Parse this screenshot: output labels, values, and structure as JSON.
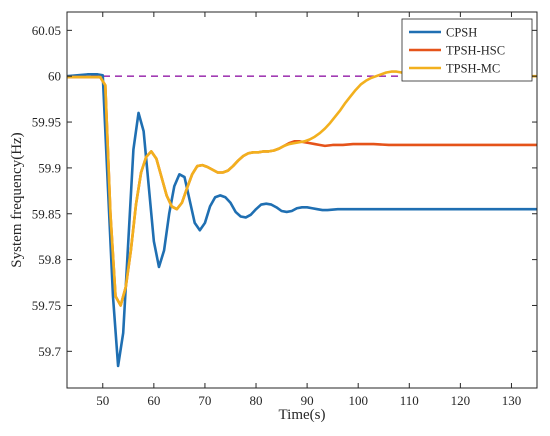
{
  "chart_data": {
    "type": "line",
    "title": "",
    "xlabel": "Time(s)",
    "ylabel": "System frequency(Hz)",
    "xlim": [
      43,
      135
    ],
    "ylim": [
      59.66,
      60.07
    ],
    "xticks": [
      "50",
      "60",
      "70",
      "80",
      "90",
      "100",
      "110",
      "120",
      "130"
    ],
    "yticks": [
      "59.7",
      "59.75",
      "59.8",
      "59.85",
      "59.9",
      "59.95",
      "60",
      "60.05"
    ],
    "grid": false,
    "legend_position": "top-right",
    "reference_line": {
      "y": 60,
      "style": "dashed",
      "color": "#a23cb4"
    },
    "series": [
      {
        "name": "CPSH",
        "color": "#1f6fb2",
        "x": [
          43,
          45,
          47,
          49,
          50,
          51,
          52,
          53,
          54,
          55,
          56,
          57,
          58,
          59,
          60,
          61,
          62,
          63,
          64,
          65,
          66,
          67,
          68,
          69,
          70,
          71,
          72,
          73,
          74,
          75,
          76,
          77,
          78,
          79,
          80,
          81,
          82,
          83,
          84,
          85,
          86,
          87,
          88,
          89,
          90,
          91,
          92,
          93,
          94,
          96,
          98,
          100,
          105,
          110,
          120,
          135
        ],
        "y": [
          60.0,
          60.001,
          60.002,
          60.002,
          60.001,
          59.88,
          59.76,
          59.684,
          59.72,
          59.82,
          59.92,
          59.96,
          59.94,
          59.88,
          59.82,
          59.792,
          59.81,
          59.85,
          59.88,
          59.893,
          59.89,
          59.865,
          59.84,
          59.832,
          59.84,
          59.858,
          59.868,
          59.87,
          59.868,
          59.862,
          59.852,
          59.847,
          59.846,
          59.849,
          59.855,
          59.86,
          59.861,
          59.86,
          59.857,
          59.853,
          59.852,
          59.853,
          59.856,
          59.857,
          59.857,
          59.856,
          59.855,
          59.854,
          59.854,
          59.855,
          59.855,
          59.855,
          59.855,
          59.855,
          59.855,
          59.855
        ]
      },
      {
        "name": "TPSH-HSC",
        "color": "#e5531a",
        "x": [
          43,
          47,
          49.5,
          50.5,
          51.5,
          52.5,
          53.5,
          54.5,
          55.5,
          56.5,
          57.5,
          58.5,
          59.5,
          60.5,
          61.5,
          62.5,
          63.5,
          64.5,
          65.5,
          66.5,
          67.5,
          68.5,
          69.5,
          70.5,
          71.5,
          72.5,
          73.5,
          74.5,
          75.5,
          76.5,
          77.5,
          78.5,
          79.5,
          80.5,
          81.5,
          82.5,
          83.5,
          84.5,
          85.5,
          86.5,
          87.5,
          88.5,
          89.5,
          90.5,
          91.5,
          92.5,
          93.5,
          95,
          97,
          99,
          101,
          103,
          106,
          110,
          120,
          135
        ],
        "y": [
          59.999,
          59.999,
          59.999,
          59.99,
          59.85,
          59.76,
          59.75,
          59.77,
          59.81,
          59.86,
          59.895,
          59.912,
          59.918,
          59.91,
          59.89,
          59.87,
          59.858,
          59.855,
          59.862,
          59.878,
          59.893,
          59.902,
          59.903,
          59.901,
          59.898,
          59.895,
          59.895,
          59.897,
          59.902,
          59.908,
          59.913,
          59.916,
          59.917,
          59.917,
          59.918,
          59.918,
          59.919,
          59.921,
          59.924,
          59.927,
          59.929,
          59.929,
          59.928,
          59.927,
          59.926,
          59.925,
          59.924,
          59.925,
          59.925,
          59.926,
          59.926,
          59.926,
          59.925,
          59.925,
          59.925,
          59.925
        ]
      },
      {
        "name": "TPSH-MC",
        "color": "#f2b01e",
        "x": [
          43,
          47,
          49.5,
          50.5,
          51.5,
          52.5,
          53.5,
          54.5,
          55.5,
          56.5,
          57.5,
          58.5,
          59.5,
          60.5,
          61.5,
          62.5,
          63.5,
          64.5,
          65.5,
          66.5,
          67.5,
          68.5,
          69.5,
          70.5,
          71.5,
          72.5,
          73.5,
          74.5,
          75.5,
          76.5,
          77.5,
          78.5,
          79.5,
          80.5,
          81.5,
          82.5,
          83.5,
          84.5,
          85.5,
          86.5,
          87.5,
          88.5,
          89.5,
          90.5,
          91.5,
          92.5,
          93.5,
          94.5,
          95.5,
          96.5,
          97.5,
          98.5,
          99.5,
          100.5,
          101.5,
          102.5,
          103.5,
          104.5,
          105.5,
          106.5,
          107.5,
          108.5,
          109.5,
          110.5,
          111.5,
          113,
          116,
          120,
          125,
          130,
          135
        ],
        "y": [
          59.999,
          59.999,
          59.999,
          59.99,
          59.85,
          59.76,
          59.75,
          59.77,
          59.81,
          59.86,
          59.895,
          59.912,
          59.918,
          59.91,
          59.89,
          59.87,
          59.858,
          59.855,
          59.862,
          59.878,
          59.893,
          59.902,
          59.903,
          59.901,
          59.898,
          59.895,
          59.895,
          59.897,
          59.902,
          59.908,
          59.913,
          59.916,
          59.917,
          59.917,
          59.918,
          59.918,
          59.919,
          59.921,
          59.924,
          59.926,
          59.927,
          59.928,
          59.929,
          59.931,
          59.934,
          59.938,
          59.943,
          59.949,
          59.956,
          59.963,
          59.971,
          59.978,
          59.985,
          59.991,
          59.995,
          59.998,
          60.0,
          60.002,
          60.004,
          60.005,
          60.005,
          60.004,
          60.002,
          60.0,
          59.999,
          59.999,
          60.0,
          60.0,
          60.0,
          60.0,
          60.0
        ]
      }
    ]
  }
}
